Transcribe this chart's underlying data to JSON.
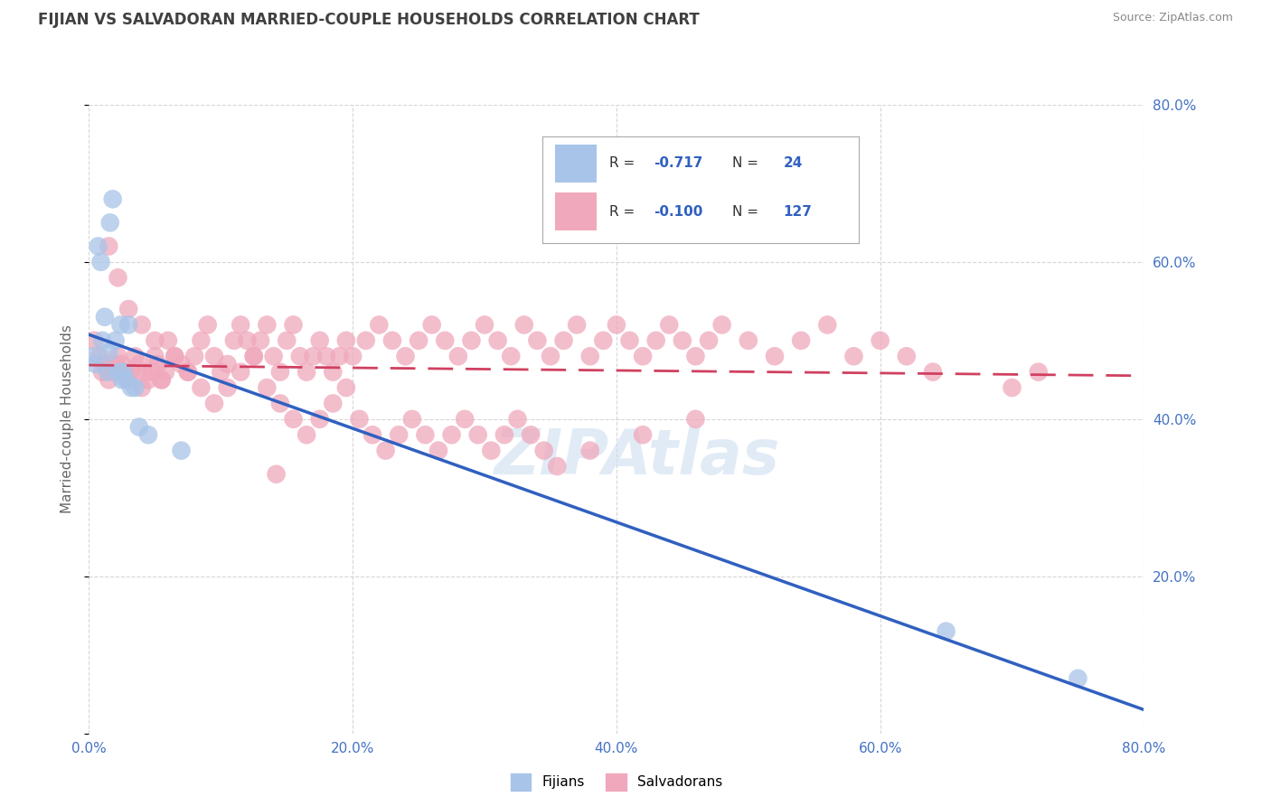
{
  "title": "FIJIAN VS SALVADORAN MARRIED-COUPLE HOUSEHOLDS CORRELATION CHART",
  "source_text": "Source: ZipAtlas.com",
  "ylabel": "Married-couple Households",
  "xlim": [
    0.0,
    80.0
  ],
  "ylim": [
    0.0,
    80.0
  ],
  "xticks": [
    0.0,
    20.0,
    40.0,
    60.0,
    80.0
  ],
  "yticks": [
    0.0,
    20.0,
    40.0,
    60.0,
    80.0
  ],
  "xtick_labels": [
    "0.0%",
    "20.0%",
    "40.0%",
    "60.0%",
    "80.0%"
  ],
  "ytick_labels": [
    "",
    "20.0%",
    "40.0%",
    "60.0%",
    "80.0%"
  ],
  "watermark": "ZIPAtlas",
  "fijian_color": "#a8c4e8",
  "salvadoran_color": "#f0a8bc",
  "fijian_line_color": "#3060c0",
  "salvadoran_line_color": "#d04060",
  "legend_bottom_fijian": "Fijians",
  "legend_bottom_salvadoran": "Salvadorans",
  "background_color": "#ffffff",
  "grid_color": "#cccccc",
  "title_color": "#404040",
  "axis_label_color": "#666666",
  "tick_label_color": "#4472c4",
  "fijian_points_x": [
    0.3,
    0.5,
    0.7,
    0.9,
    1.0,
    1.2,
    1.4,
    1.5,
    1.6,
    1.8,
    2.0,
    2.2,
    2.4,
    2.5,
    2.6,
    2.8,
    3.0,
    3.2,
    3.5,
    3.8,
    4.5,
    7.0,
    65.0,
    75.0
  ],
  "fijian_points_y": [
    48.0,
    47.0,
    62.0,
    60.0,
    50.0,
    53.0,
    46.0,
    48.5,
    65.0,
    68.0,
    50.0,
    46.0,
    52.0,
    45.0,
    46.0,
    45.0,
    52.0,
    44.0,
    44.0,
    39.0,
    38.0,
    36.0,
    13.0,
    7.0
  ],
  "salvadoran_points_x": [
    0.4,
    0.8,
    1.0,
    1.2,
    1.5,
    1.8,
    2.0,
    2.2,
    2.5,
    2.8,
    3.0,
    3.2,
    3.5,
    3.8,
    4.0,
    4.2,
    4.5,
    4.8,
    5.0,
    5.2,
    5.5,
    5.8,
    6.0,
    6.5,
    7.0,
    7.5,
    8.0,
    8.5,
    9.0,
    9.5,
    10.0,
    10.5,
    11.0,
    11.5,
    12.0,
    12.5,
    13.0,
    13.5,
    14.0,
    14.5,
    15.0,
    15.5,
    16.0,
    16.5,
    17.0,
    17.5,
    18.0,
    18.5,
    19.0,
    19.5,
    20.0,
    21.0,
    22.0,
    23.0,
    24.0,
    25.0,
    26.0,
    27.0,
    28.0,
    29.0,
    30.0,
    31.0,
    32.0,
    33.0,
    34.0,
    35.0,
    36.0,
    37.0,
    38.0,
    39.0,
    40.0,
    41.0,
    42.0,
    43.0,
    44.0,
    45.0,
    46.0,
    47.0,
    48.0,
    50.0,
    52.0,
    54.0,
    56.0,
    58.0,
    60.0,
    62.0,
    64.0,
    70.0,
    72.0,
    14.2,
    1.5,
    2.2,
    3.0,
    4.0,
    5.0,
    5.5,
    6.5,
    7.5,
    8.5,
    9.5,
    10.5,
    11.5,
    12.5,
    13.5,
    14.5,
    15.5,
    16.5,
    17.5,
    18.5,
    19.5,
    20.5,
    21.5,
    22.5,
    23.5,
    24.5,
    25.5,
    26.5,
    27.5,
    28.5,
    29.5,
    30.5,
    31.5,
    32.5,
    33.5,
    34.5,
    35.5,
    38.0,
    42.0,
    46.0
  ],
  "salvadoran_points_y": [
    50.0,
    48.0,
    46.0,
    47.0,
    45.0,
    46.0,
    47.0,
    48.0,
    47.0,
    46.0,
    45.0,
    46.0,
    48.0,
    47.0,
    44.0,
    46.0,
    45.0,
    46.0,
    48.0,
    47.0,
    45.0,
    46.0,
    50.0,
    48.0,
    47.0,
    46.0,
    48.0,
    50.0,
    52.0,
    48.0,
    46.0,
    47.0,
    50.0,
    52.0,
    50.0,
    48.0,
    50.0,
    52.0,
    48.0,
    46.0,
    50.0,
    52.0,
    48.0,
    46.0,
    48.0,
    50.0,
    48.0,
    46.0,
    48.0,
    50.0,
    48.0,
    50.0,
    52.0,
    50.0,
    48.0,
    50.0,
    52.0,
    50.0,
    48.0,
    50.0,
    52.0,
    50.0,
    48.0,
    52.0,
    50.0,
    48.0,
    50.0,
    52.0,
    48.0,
    50.0,
    52.0,
    50.0,
    48.0,
    50.0,
    52.0,
    50.0,
    48.0,
    50.0,
    52.0,
    50.0,
    48.0,
    50.0,
    52.0,
    48.0,
    50.0,
    48.0,
    46.0,
    44.0,
    46.0,
    33.0,
    62.0,
    58.0,
    54.0,
    52.0,
    50.0,
    45.0,
    48.0,
    46.0,
    44.0,
    42.0,
    44.0,
    46.0,
    48.0,
    44.0,
    42.0,
    40.0,
    38.0,
    40.0,
    42.0,
    44.0,
    40.0,
    38.0,
    36.0,
    38.0,
    40.0,
    38.0,
    36.0,
    38.0,
    40.0,
    38.0,
    36.0,
    38.0,
    40.0,
    38.0,
    36.0,
    34.0,
    36.0,
    38.0,
    40.0
  ]
}
